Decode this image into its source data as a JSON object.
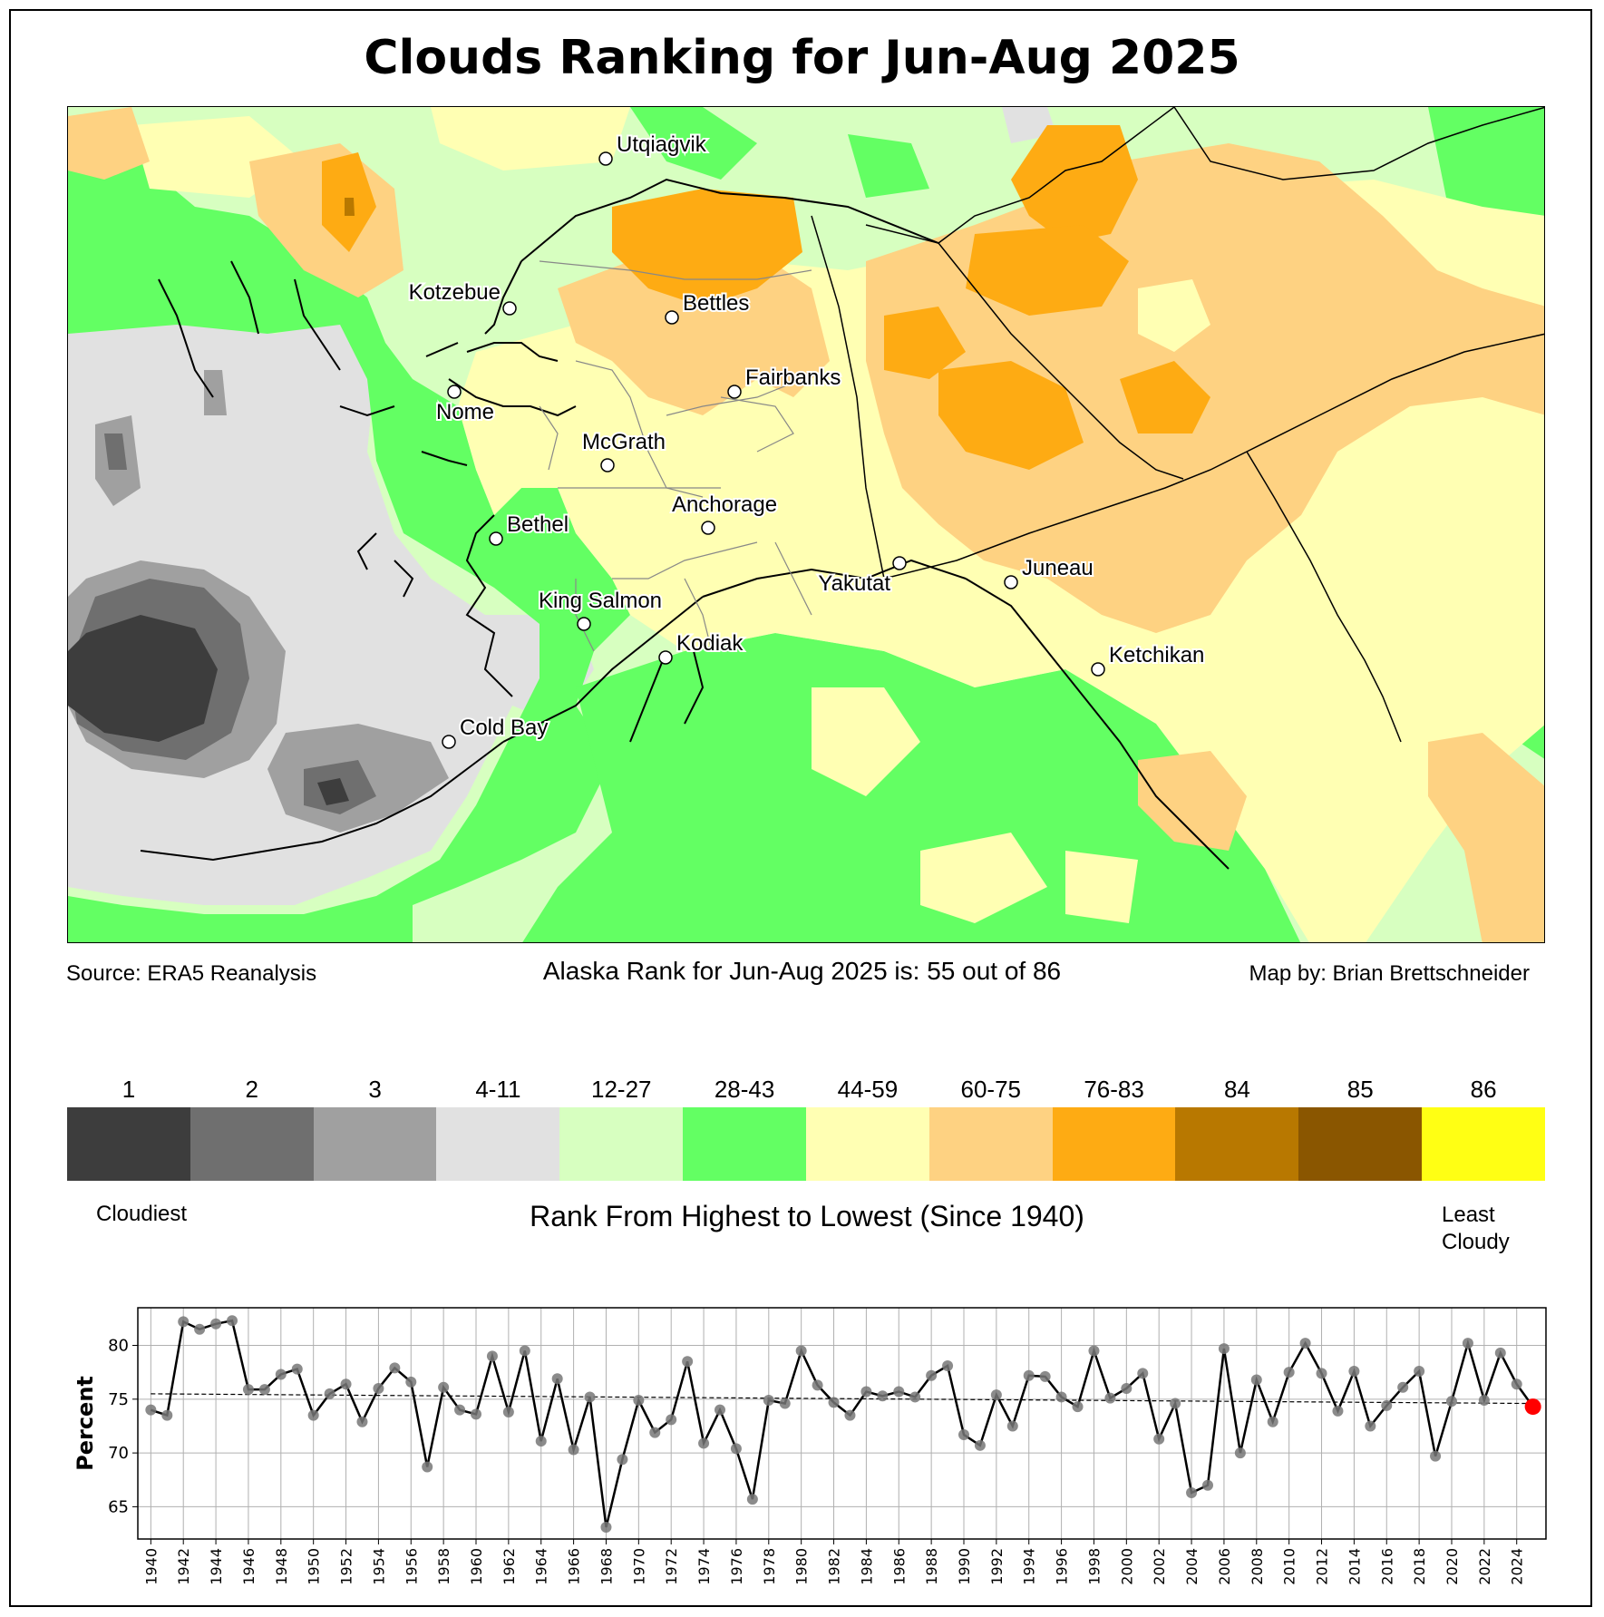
{
  "title": "Clouds Ranking for Jun-Aug 2025",
  "source": "Source: ERA5 Reanalysis",
  "rank_statement": "Alaska Rank for Jun-Aug 2025 is: 55 out of 86",
  "credit": "Map by: Brian Brettschneider",
  "map": {
    "cities": [
      {
        "name": "Utqiaġvik"
      },
      {
        "name": "Kotzebue"
      },
      {
        "name": "Bettles"
      },
      {
        "name": "Fairbanks"
      },
      {
        "name": "Nome"
      },
      {
        "name": "McGrath"
      },
      {
        "name": "Bethel"
      },
      {
        "name": "Anchorage"
      },
      {
        "name": "Yakutat"
      },
      {
        "name": "Juneau"
      },
      {
        "name": "King Salmon"
      },
      {
        "name": "Kodiak"
      },
      {
        "name": "Ketchikan"
      },
      {
        "name": "Cold Bay"
      }
    ]
  },
  "legend": {
    "bins": [
      {
        "label": "1",
        "color": "#3d3d3d"
      },
      {
        "label": "2",
        "color": "#6f6f6f"
      },
      {
        "label": "3",
        "color": "#a0a0a0"
      },
      {
        "label": "4-11",
        "color": "#e1e1e1"
      },
      {
        "label": "12-27",
        "color": "#d7ffc0"
      },
      {
        "label": "28-43",
        "color": "#63ff63"
      },
      {
        "label": "44-59",
        "color": "#ffffb3"
      },
      {
        "label": "60-75",
        "color": "#fed282"
      },
      {
        "label": "76-83",
        "color": "#feab13"
      },
      {
        "label": "84",
        "color": "#b87800"
      },
      {
        "label": "85",
        "color": "#8a5600"
      },
      {
        "label": "86",
        "color": "#ffff14"
      }
    ],
    "left_label": "Cloudiest",
    "title": "Rank From Highest to Lowest (Since 1940)",
    "right_label_line1": "Least",
    "right_label_line2": "Cloudy"
  },
  "chart_data": {
    "type": "line",
    "ylabel": "Percent",
    "xlim": [
      1939.2,
      2025.8
    ],
    "ylim": [
      62,
      83.5
    ],
    "yticks": [
      65,
      70,
      75,
      80
    ],
    "xticks": [
      1940,
      1942,
      1944,
      1946,
      1948,
      1950,
      1952,
      1954,
      1956,
      1958,
      1960,
      1962,
      1964,
      1966,
      1968,
      1970,
      1972,
      1974,
      1976,
      1978,
      1980,
      1982,
      1984,
      1986,
      1988,
      1990,
      1992,
      1994,
      1996,
      1998,
      2000,
      2002,
      2004,
      2006,
      2008,
      2010,
      2012,
      2014,
      2016,
      2018,
      2020,
      2022,
      2024
    ],
    "grid": true,
    "series": [
      {
        "x": [
          1940,
          1941,
          1942,
          1943,
          1944,
          1945,
          1946,
          1947,
          1948,
          1949,
          1950,
          1951,
          1952,
          1953,
          1954,
          1955,
          1956,
          1957,
          1958,
          1959,
          1960,
          1961,
          1962,
          1963,
          1964,
          1965,
          1966,
          1967,
          1968,
          1969,
          1970,
          1971,
          1972,
          1973,
          1974,
          1975,
          1976,
          1977,
          1978,
          1979,
          1980,
          1981,
          1982,
          1983,
          1984,
          1985,
          1986,
          1987,
          1988,
          1989,
          1990,
          1991,
          1992,
          1993,
          1994,
          1995,
          1996,
          1997,
          1998,
          1999,
          2000,
          2001,
          2002,
          2003,
          2004,
          2005,
          2006,
          2007,
          2008,
          2009,
          2010,
          2011,
          2012,
          2013,
          2014,
          2015,
          2016,
          2017,
          2018,
          2019,
          2020,
          2021,
          2022,
          2023,
          2024,
          2025
        ],
        "y": [
          74.0,
          73.5,
          82.2,
          81.5,
          82.0,
          82.3,
          75.9,
          75.9,
          77.3,
          77.8,
          73.5,
          75.5,
          76.4,
          72.9,
          76.0,
          77.9,
          76.6,
          68.7,
          76.1,
          74.0,
          73.6,
          79.0,
          73.8,
          79.5,
          71.1,
          76.9,
          70.3,
          75.2,
          63.1,
          69.4,
          74.9,
          71.9,
          73.1,
          78.5,
          70.9,
          74.0,
          70.4,
          65.7,
          74.9,
          74.6,
          79.5,
          76.3,
          74.7,
          73.5,
          75.7,
          75.3,
          75.7,
          75.2,
          77.2,
          78.1,
          71.7,
          70.7,
          75.4,
          72.5,
          77.2,
          77.1,
          75.2,
          74.3,
          79.5,
          75.1,
          76.0,
          77.4,
          71.3,
          74.6,
          66.3,
          67.0,
          79.7,
          70.0,
          76.8,
          72.9,
          77.5,
          80.2,
          77.4,
          73.9,
          77.6,
          72.5,
          74.4,
          76.1,
          77.6,
          69.7,
          74.8,
          80.2,
          74.9,
          79.3,
          76.4,
          74.3
        ]
      }
    ],
    "trend": {
      "y_start": 75.5,
      "y_end": 74.6
    },
    "highlight": {
      "x": 2025,
      "y": 74.3,
      "color": "#ff0000"
    }
  }
}
